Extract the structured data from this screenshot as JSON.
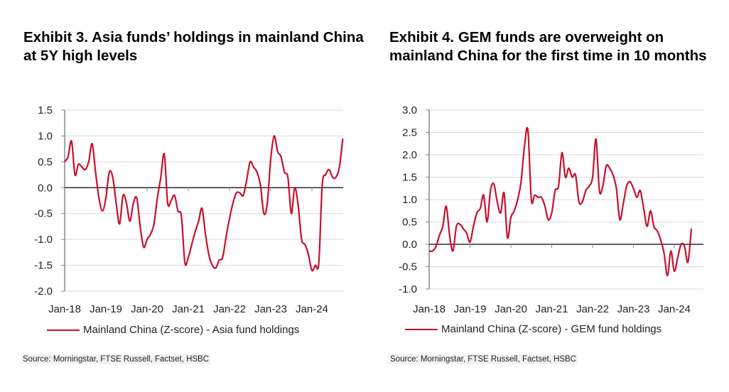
{
  "line_color": "#c8102e",
  "chart_data": [
    {
      "type": "line",
      "title": "Exhibit 3. Asia funds’ holdings in mainland China at 5Y high levels",
      "xlabel": "",
      "ylabel": "",
      "ylim": [
        -2.0,
        1.5
      ],
      "yticks": [
        "1.5",
        "1.0",
        "0.5",
        "0.0",
        "-0.5",
        "-1.0",
        "-1.5",
        "-2.0"
      ],
      "ytick_values": [
        1.5,
        1.0,
        0.5,
        0.0,
        -0.5,
        -1.0,
        -1.5,
        -2.0
      ],
      "xticks": [
        "Jan-18",
        "Jan-19",
        "Jan-20",
        "Jan-21",
        "Jan-22",
        "Jan-23",
        "Jan-24"
      ],
      "x_start": "Jan-18",
      "x_frequency": "monthly",
      "grid": true,
      "legend_position": "bottom",
      "series": [
        {
          "name": "Mainland China (Z-score) - Asia fund holdings",
          "values": [
            0.5,
            0.6,
            0.9,
            0.25,
            0.45,
            0.4,
            0.35,
            0.5,
            0.85,
            0.3,
            -0.2,
            -0.45,
            -0.2,
            0.3,
            0.2,
            -0.3,
            -0.7,
            -0.15,
            -0.3,
            -0.65,
            -0.3,
            -0.2,
            -0.75,
            -1.15,
            -1.0,
            -0.9,
            -0.7,
            -0.2,
            0.2,
            0.65,
            -0.3,
            -0.25,
            -0.15,
            -0.45,
            -0.55,
            -1.45,
            -1.35,
            -1.1,
            -0.85,
            -0.65,
            -0.4,
            -0.9,
            -1.3,
            -1.5,
            -1.55,
            -1.4,
            -1.35,
            -0.95,
            -0.6,
            -0.3,
            -0.1,
            -0.1,
            -0.15,
            0.15,
            0.5,
            0.4,
            0.3,
            0.05,
            -0.5,
            -0.3,
            0.55,
            1.0,
            0.7,
            0.6,
            0.3,
            0.2,
            -0.5,
            0.0,
            -0.35,
            -1.0,
            -1.1,
            -1.3,
            -1.6,
            -1.5,
            -1.45,
            0.05,
            0.25,
            0.35,
            0.2,
            0.2,
            0.4,
            0.95
          ]
        }
      ],
      "source": "Source: Morningstar, FTSE Russell, Factset, HSBC"
    },
    {
      "type": "line",
      "title": "Exhibit 4. GEM funds are overweight on mainland China for the first time in 10 months",
      "xlabel": "",
      "ylabel": "",
      "ylim": [
        -1.0,
        3.0
      ],
      "yticks": [
        "3.0",
        "2.5",
        "2.0",
        "1.5",
        "1.0",
        "0.5",
        "0.0",
        "-0.5",
        "-1.0"
      ],
      "ytick_values": [
        3.0,
        2.5,
        2.0,
        1.5,
        1.0,
        0.5,
        0.0,
        -0.5,
        -1.0
      ],
      "xticks": [
        "Jan-18",
        "Jan-19",
        "Jan-20",
        "Jan-21",
        "Jan-22",
        "Jan-23",
        "Jan-24"
      ],
      "x_start": "Jan-18",
      "x_frequency": "monthly",
      "grid": true,
      "legend_position": "bottom",
      "series": [
        {
          "name": "Mainland China (Z-score) - GEM fund holdings",
          "values": [
            -0.15,
            -0.15,
            -0.05,
            0.2,
            0.4,
            0.85,
            0.2,
            -0.15,
            0.4,
            0.45,
            0.35,
            0.25,
            0.05,
            0.4,
            0.7,
            0.8,
            1.1,
            0.5,
            1.2,
            1.35,
            0.95,
            0.7,
            1.15,
            0.15,
            0.6,
            0.75,
            1.0,
            1.4,
            2.2,
            2.55,
            1.0,
            1.1,
            1.05,
            1.05,
            0.85,
            0.55,
            0.7,
            1.2,
            1.3,
            2.05,
            1.5,
            1.7,
            1.5,
            1.55,
            0.95,
            0.95,
            1.2,
            1.3,
            1.5,
            2.35,
            1.2,
            1.3,
            1.75,
            1.7,
            1.55,
            1.25,
            0.55,
            0.9,
            1.3,
            1.4,
            1.25,
            1.05,
            1.2,
            0.8,
            0.4,
            0.75,
            0.4,
            0.3,
            0.1,
            -0.2,
            -0.7,
            -0.15,
            -0.6,
            -0.3,
            0.0,
            -0.05,
            -0.4,
            0.35
          ]
        }
      ],
      "source": "Source: Morningstar, FTSE Russell, Factset, HSBC"
    }
  ]
}
